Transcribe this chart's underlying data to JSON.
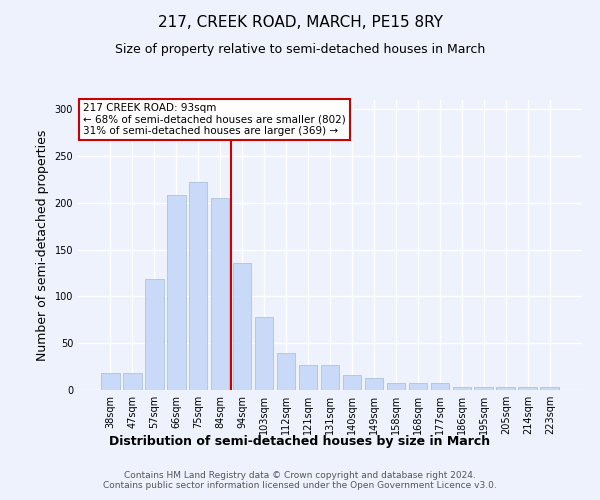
{
  "title": "217, CREEK ROAD, MARCH, PE15 8RY",
  "subtitle": "Size of property relative to semi-detached houses in March",
  "xlabel": "Distribution of semi-detached houses by size in March",
  "ylabel": "Number of semi-detached properties",
  "categories": [
    "38sqm",
    "47sqm",
    "57sqm",
    "66sqm",
    "75sqm",
    "84sqm",
    "94sqm",
    "103sqm",
    "112sqm",
    "121sqm",
    "131sqm",
    "140sqm",
    "149sqm",
    "158sqm",
    "168sqm",
    "177sqm",
    "186sqm",
    "195sqm",
    "205sqm",
    "214sqm",
    "223sqm"
  ],
  "values": [
    18,
    18,
    119,
    208,
    222,
    205,
    136,
    78,
    40,
    27,
    27,
    16,
    13,
    8,
    8,
    8,
    3,
    3,
    3,
    3,
    3
  ],
  "bar_color": "#c9daf8",
  "bar_edge_color": "#a4bcd4",
  "highlight_index": 6,
  "highlight_line_color": "#cc0000",
  "annotation_text": "217 CREEK ROAD: 93sqm\n← 68% of semi-detached houses are smaller (802)\n31% of semi-detached houses are larger (369) →",
  "annotation_box_color": "#ffffff",
  "annotation_box_edge": "#cc0000",
  "ylim": [
    0,
    310
  ],
  "yticks": [
    0,
    50,
    100,
    150,
    200,
    250,
    300
  ],
  "footer": "Contains HM Land Registry data © Crown copyright and database right 2024.\nContains public sector information licensed under the Open Government Licence v3.0.",
  "bg_color": "#eef2fc",
  "grid_color": "#ffffff",
  "title_fontsize": 11,
  "subtitle_fontsize": 9,
  "axis_label_fontsize": 9,
  "tick_fontsize": 7,
  "footer_fontsize": 6.5,
  "annotation_fontsize": 7.5
}
